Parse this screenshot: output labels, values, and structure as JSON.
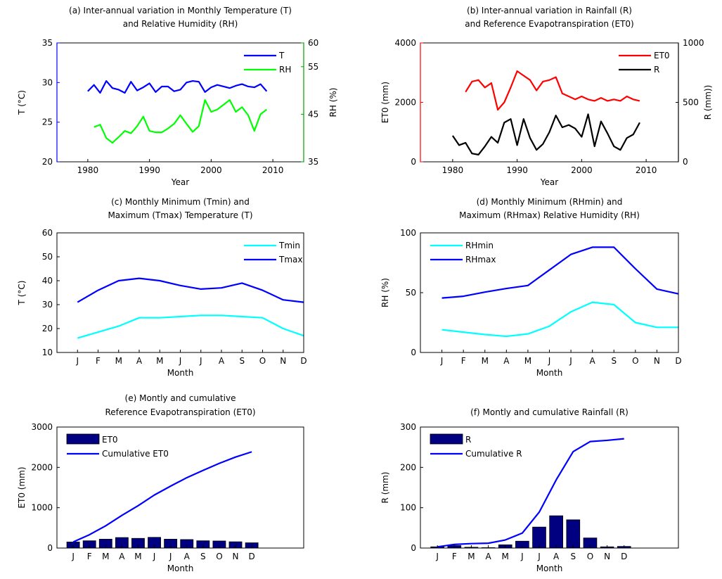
{
  "chart_data": [
    {
      "id": "a",
      "type": "line",
      "title_lines": [
        "(a) Inter-annual variation in Monthly Temperature (T)",
        "and Relative Humidity (RH)"
      ],
      "xlabel": "Year",
      "ylabel": "T (°C)",
      "ylabel_right": "RH (%)",
      "xlim": [
        1975,
        2015
      ],
      "xticks": [
        1980,
        1990,
        2000,
        2010
      ],
      "ylim": [
        20,
        35
      ],
      "yticks": [
        20,
        25,
        30,
        35
      ],
      "ylim_right": [
        35,
        60
      ],
      "yticks_right": [
        35,
        45,
        55,
        60
      ],
      "legend": "top-right",
      "left_axis_color": "#0000ff",
      "right_axis_color": "#00a000",
      "series": [
        {
          "name": "T",
          "axis": "left",
          "color": "#0000ff",
          "x": [
            1980,
            1981,
            1982,
            1983,
            1984,
            1985,
            1986,
            1987,
            1988,
            1989,
            1990,
            1991,
            1992,
            1993,
            1994,
            1995,
            1996,
            1997,
            1998,
            1999,
            2000,
            2001,
            2002,
            2003,
            2004,
            2005,
            2006,
            2007,
            2008,
            2009
          ],
          "y": [
            28.9,
            29.7,
            28.7,
            30.2,
            29.3,
            29.1,
            28.7,
            30.1,
            29.0,
            29.4,
            29.9,
            28.8,
            29.5,
            29.5,
            28.9,
            29.1,
            30.0,
            30.2,
            30.1,
            28.8,
            29.4,
            29.7,
            29.5,
            29.3,
            29.6,
            29.8,
            29.5,
            29.4,
            29.8,
            28.9
          ]
        },
        {
          "name": "RH",
          "axis": "right",
          "color": "#00ff00",
          "x": [
            1981,
            1982,
            1983,
            1984,
            1985,
            1986,
            1987,
            1988,
            1989,
            1990,
            1991,
            1992,
            1993,
            1994,
            1995,
            1996,
            1997,
            1998,
            1999,
            2000,
            2001,
            2002,
            2003,
            2004,
            2005,
            2006,
            2007,
            2008,
            2009
          ],
          "y": [
            42.3,
            42.8,
            40.0,
            39.0,
            40.2,
            41.5,
            41.0,
            42.5,
            44.5,
            41.5,
            41.2,
            41.2,
            42.0,
            43.0,
            44.8,
            43.0,
            41.3,
            42.5,
            48.0,
            45.5,
            46.0,
            47.0,
            48.0,
            45.5,
            46.5,
            44.8,
            41.5,
            45.0,
            46.0
          ]
        }
      ]
    },
    {
      "id": "b",
      "type": "line",
      "title_lines": [
        "(b) Inter-annual variation in Rainfall (R)",
        "and Reference Evapotranspiration (ET0)"
      ],
      "xlabel": "Year",
      "ylabel": "ET0 (mm)",
      "ylabel_right": "R (mm))",
      "xlim": [
        1975,
        2015
      ],
      "xticks": [
        1980,
        1990,
        2000,
        2010
      ],
      "ylim": [
        0,
        4000
      ],
      "yticks": [
        0,
        2000,
        4000
      ],
      "ylim_right": [
        0,
        1000
      ],
      "yticks_right": [
        0,
        500,
        1000
      ],
      "legend": "top-right",
      "left_axis_color": "#ff0000",
      "right_axis_color": "#000000",
      "series": [
        {
          "name": "ET0",
          "axis": "left",
          "color": "#ff0000",
          "x": [
            1982,
            1983,
            1984,
            1985,
            1986,
            1987,
            1988,
            1989,
            1990,
            1991,
            1992,
            1993,
            1994,
            1995,
            1996,
            1997,
            1998,
            1999,
            2000,
            2001,
            2002,
            2003,
            2004,
            2005,
            2006,
            2007,
            2008,
            2009
          ],
          "y": [
            2350,
            2700,
            2750,
            2500,
            2650,
            1750,
            2000,
            2500,
            3050,
            2900,
            2750,
            2400,
            2700,
            2750,
            2850,
            2300,
            2200,
            2100,
            2200,
            2100,
            2050,
            2150,
            2050,
            2100,
            2050,
            2200,
            2100,
            2050
          ]
        },
        {
          "name": "R",
          "axis": "right",
          "color": "#000000",
          "x": [
            1980,
            1981,
            1982,
            1983,
            1984,
            1985,
            1986,
            1987,
            1988,
            1989,
            1990,
            1991,
            1992,
            1993,
            1994,
            1995,
            1996,
            1997,
            1998,
            1999,
            2000,
            2001,
            2002,
            2003,
            2004,
            2005,
            2006,
            2007,
            2008,
            2009
          ],
          "y": [
            220,
            140,
            160,
            70,
            60,
            130,
            210,
            160,
            330,
            360,
            140,
            360,
            200,
            100,
            150,
            250,
            390,
            290,
            310,
            280,
            210,
            400,
            130,
            340,
            240,
            130,
            100,
            200,
            230,
            330
          ]
        }
      ]
    },
    {
      "id": "c",
      "type": "line",
      "title_lines": [
        "(c) Monthly Minimum (Tmin) and",
        "Maximum (Tmax) Temperature (T)"
      ],
      "xlabel": "Month",
      "ylabel": "T (°C)",
      "categories": [
        "J",
        "F",
        "M",
        "A",
        "M",
        "J",
        "J",
        "A",
        "S",
        "O",
        "N",
        "D"
      ],
      "ylim": [
        10,
        60
      ],
      "yticks": [
        10,
        20,
        30,
        40,
        50,
        60
      ],
      "legend": "top-right",
      "series": [
        {
          "name": "Tmin",
          "color": "#00ffff",
          "values": [
            16,
            18.5,
            21,
            24.5,
            24.5,
            25,
            25.5,
            25.5,
            25,
            24.5,
            20,
            17
          ]
        },
        {
          "name": "Tmax",
          "color": "#0000ff",
          "values": [
            31,
            36,
            40,
            41,
            40,
            38,
            36.5,
            37,
            39,
            36,
            32,
            31
          ]
        }
      ]
    },
    {
      "id": "d",
      "type": "line",
      "title_lines": [
        "(d) Monthly Minimum (RHmin) and",
        "Maximum (RHmax) Relative Humidity (RH)"
      ],
      "xlabel": "Month",
      "ylabel": "RH (%)",
      "categories": [
        "J",
        "F",
        "M",
        "A",
        "M",
        "J",
        "J",
        "A",
        "S",
        "O",
        "N",
        "D"
      ],
      "ylim": [
        0,
        100
      ],
      "yticks": [
        0,
        50,
        100
      ],
      "legend": "top-left",
      "series": [
        {
          "name": "RHmin",
          "color": "#00ffff",
          "values": [
            19,
            17,
            15,
            13.5,
            15.5,
            22,
            34,
            42,
            40,
            25,
            21,
            21
          ]
        },
        {
          "name": "RHmax",
          "color": "#0000ff",
          "values": [
            45.5,
            47,
            50.5,
            53.5,
            56,
            69,
            82,
            88,
            88,
            70,
            53,
            49
          ]
        }
      ]
    },
    {
      "id": "e",
      "type": "bar",
      "title_lines": [
        "(e) Montly and cumulative",
        "Reference Evapotranspiration (ET0)"
      ],
      "xlabel": "Month",
      "ylabel": "ET0 (mm)",
      "categories": [
        "J",
        "F",
        "M",
        "A",
        "M",
        "J",
        "J",
        "A",
        "S",
        "O",
        "N",
        "D"
      ],
      "ylim": [
        0,
        3000
      ],
      "yticks": [
        0,
        1000,
        2000,
        3000
      ],
      "legend": "top-left",
      "bar_color": "#000080",
      "series": [
        {
          "name": "ET0",
          "kind": "bar",
          "values": [
            150,
            180,
            220,
            260,
            240,
            265,
            220,
            210,
            180,
            175,
            155,
            130
          ]
        },
        {
          "name": "Cumulative ET0",
          "kind": "line",
          "color": "#0000ff",
          "values": [
            150,
            330,
            550,
            810,
            1050,
            1315,
            1535,
            1745,
            1925,
            2100,
            2255,
            2385
          ]
        }
      ]
    },
    {
      "id": "f",
      "type": "bar",
      "title_lines": [
        "(f) Montly and cumulative Rainfall (R)"
      ],
      "xlabel": "Month",
      "ylabel": "R (mm)",
      "categories": [
        "J",
        "F",
        "M",
        "A",
        "M",
        "J",
        "J",
        "A",
        "S",
        "O",
        "N",
        "D"
      ],
      "ylim": [
        0,
        300
      ],
      "yticks": [
        0,
        100,
        200,
        300
      ],
      "legend": "top-left",
      "bar_color": "#000080",
      "series": [
        {
          "name": "R",
          "kind": "bar",
          "values": [
            3,
            6,
            2,
            1,
            8,
            17,
            52,
            80,
            70,
            25,
            3,
            4
          ]
        },
        {
          "name": "Cumulative R",
          "kind": "line",
          "color": "#0000ff",
          "values": [
            3,
            9,
            11,
            12,
            20,
            37,
            89,
            169,
            239,
            264,
            267,
            271
          ]
        }
      ]
    }
  ]
}
